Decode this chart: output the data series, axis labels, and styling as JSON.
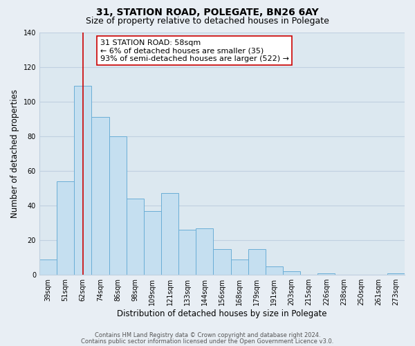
{
  "title": "31, STATION ROAD, POLEGATE, BN26 6AY",
  "subtitle": "Size of property relative to detached houses in Polegate",
  "xlabel": "Distribution of detached houses by size in Polegate",
  "ylabel": "Number of detached properties",
  "categories": [
    "39sqm",
    "51sqm",
    "62sqm",
    "74sqm",
    "86sqm",
    "98sqm",
    "109sqm",
    "121sqm",
    "133sqm",
    "144sqm",
    "156sqm",
    "168sqm",
    "179sqm",
    "191sqm",
    "203sqm",
    "215sqm",
    "226sqm",
    "238sqm",
    "250sqm",
    "261sqm",
    "273sqm"
  ],
  "values": [
    9,
    54,
    109,
    91,
    80,
    44,
    37,
    47,
    26,
    27,
    15,
    9,
    15,
    5,
    2,
    0,
    1,
    0,
    0,
    0,
    1
  ],
  "bar_color": "#c5dff0",
  "bar_edge_color": "#6aaed6",
  "vline_x_idx": 2,
  "vline_color": "#cc0000",
  "annotation_text": "31 STATION ROAD: 58sqm\n← 6% of detached houses are smaller (35)\n93% of semi-detached houses are larger (522) →",
  "annotation_box_edgecolor": "#cc0000",
  "annotation_box_facecolor": "#ffffff",
  "ylim": [
    0,
    140
  ],
  "yticks": [
    0,
    20,
    40,
    60,
    80,
    100,
    120,
    140
  ],
  "footer1": "Contains HM Land Registry data © Crown copyright and database right 2024.",
  "footer2": "Contains public sector information licensed under the Open Government Licence v3.0.",
  "background_color": "#e8eef4",
  "plot_background_color": "#dce8f0",
  "grid_color": "#c0d0e0",
  "title_fontsize": 10,
  "subtitle_fontsize": 9,
  "axis_label_fontsize": 8.5,
  "tick_fontsize": 7,
  "annotation_fontsize": 8,
  "footer_fontsize": 6
}
